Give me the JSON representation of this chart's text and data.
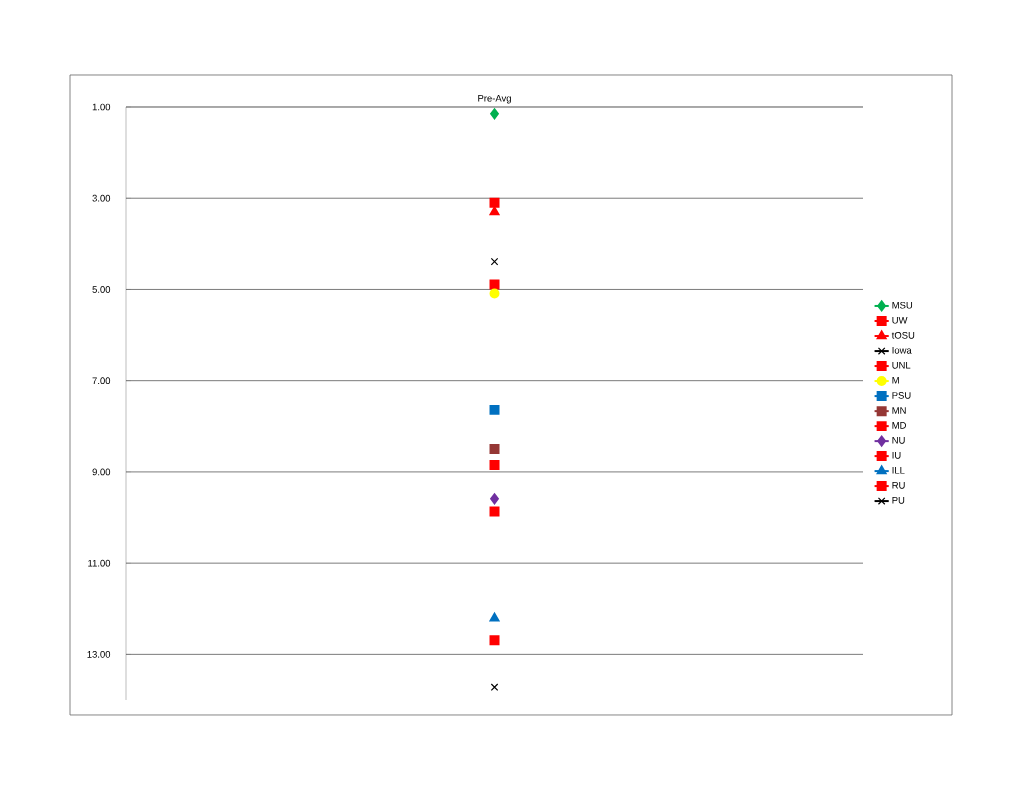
{
  "chart_data": {
    "type": "line",
    "title": null,
    "categories": [
      "Pre-Avg"
    ],
    "series": [
      {
        "name": "MSU",
        "color": "#00b050",
        "marker": "diamond",
        "values": [
          1.15
        ]
      },
      {
        "name": "UW",
        "color": "#ff0000",
        "marker": "square",
        "values": [
          3.1
        ]
      },
      {
        "name": "tOSU",
        "color": "#ff0000",
        "marker": "triangle",
        "values": [
          3.3
        ]
      },
      {
        "name": "Iowa",
        "color": "#000000",
        "marker": "cross",
        "values": [
          4.39
        ]
      },
      {
        "name": "UNL",
        "color": "#ff0000",
        "marker": "square",
        "values": [
          4.89
        ]
      },
      {
        "name": "M",
        "color": "#ffff00",
        "marker": "circle",
        "values": [
          5.09
        ]
      },
      {
        "name": "PSU",
        "color": "#0070c0",
        "marker": "square",
        "values": [
          7.64
        ]
      },
      {
        "name": "MN",
        "color": "#953735",
        "marker": "square",
        "values": [
          8.5
        ]
      },
      {
        "name": "MD",
        "color": "#ff0000",
        "marker": "square",
        "values": [
          8.85
        ]
      },
      {
        "name": "NU",
        "color": "#7030a0",
        "marker": "diamond",
        "values": [
          9.59
        ]
      },
      {
        "name": "IU",
        "color": "#ff0000",
        "marker": "square",
        "values": [
          9.87
        ]
      },
      {
        "name": "ILL",
        "color": "#0070c0",
        "marker": "triangle",
        "values": [
          12.21
        ]
      },
      {
        "name": "RU",
        "color": "#ff0000",
        "marker": "square",
        "values": [
          12.69
        ]
      },
      {
        "name": "PU",
        "color": "#000000",
        "marker": "cross",
        "values": [
          13.72
        ]
      }
    ],
    "ylim": [
      14,
      1
    ],
    "yticks": [
      {
        "value": 1,
        "label": "1.00"
      },
      {
        "value": 3,
        "label": "3.00"
      },
      {
        "value": 5,
        "label": "5.00"
      },
      {
        "value": 7,
        "label": "7.00"
      },
      {
        "value": 9,
        "label": "9.00"
      },
      {
        "value": 11,
        "label": "11.00"
      },
      {
        "value": 13,
        "label": "13.00"
      }
    ],
    "grid": "y",
    "legend": "right"
  }
}
